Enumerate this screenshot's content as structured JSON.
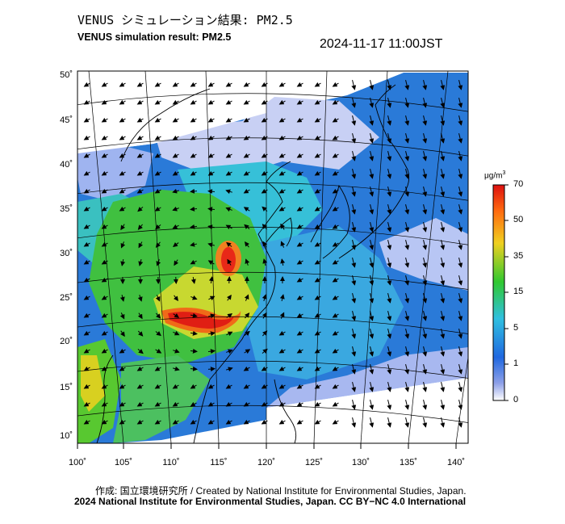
{
  "title_jp": "VENUS シミュレーション結果: PM2.5",
  "title_en": "VENUS simulation result: PM2.5",
  "timestamp": "2024-11-17 11:00JST",
  "lon_labels": [
    "100˚",
    "105˚",
    "110˚",
    "115˚",
    "120˚",
    "125˚",
    "130˚",
    "135˚",
    "140˚"
  ],
  "lat_labels": [
    "50˚",
    "45˚",
    "40˚",
    "35˚",
    "30˚",
    "25˚",
    "20˚",
    "15˚",
    "10˚"
  ],
  "colorbar": {
    "unit_text": "μg/m",
    "unit_sup": "3",
    "ticks": [
      "70",
      "50",
      "35",
      "15",
      "5",
      "1",
      "0"
    ],
    "colors": [
      "#dd1010",
      "#ff6a10",
      "#f0d020",
      "#30c830",
      "#30c0e0",
      "#2068e0",
      "#8ea0e8",
      "#ffffff"
    ]
  },
  "credit": "作成: 国立環境研究所 / Created by National Institute for Environmental Studies, Japan.",
  "copyright": "2024 National Institute for Environmental Studies, Japan. CC BY−NC 4.0 International",
  "colors": {
    "ocean": "#2a7ad8",
    "clean_air": "#c8d0f4",
    "moderate": "#36c0d8",
    "high": "#40c040",
    "very_high": "#e82818"
  }
}
